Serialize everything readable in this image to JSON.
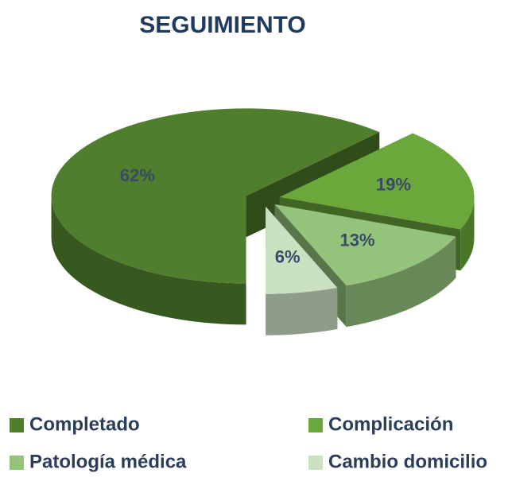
{
  "chart_data": {
    "type": "pie",
    "title": "SEGUIMIENTO",
    "categories": [
      "Completado",
      "Complicación",
      "Patología médica",
      "Cambio domicilio"
    ],
    "values": [
      62,
      19,
      13,
      6
    ],
    "value_labels": [
      "62%",
      "19%",
      "13%",
      "6%"
    ],
    "colors": [
      "#4f7f2c",
      "#6aa83c",
      "#94c47c",
      "#c9e0c1"
    ],
    "legend": "bottom"
  }
}
